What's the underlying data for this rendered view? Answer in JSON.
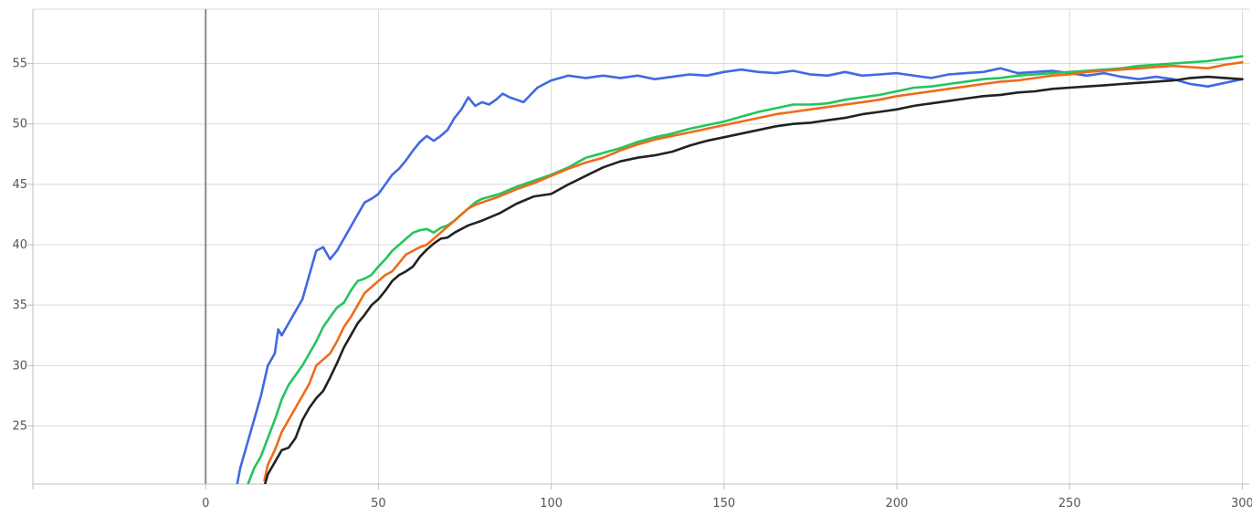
{
  "chart_data": {
    "type": "line",
    "title": "",
    "xlabel": "",
    "ylabel": "",
    "xlim": [
      -50,
      302
    ],
    "ylim": [
      20.2,
      59.5
    ],
    "x_ticks": [
      0,
      50,
      100,
      150,
      200,
      250,
      300
    ],
    "y_ticks": [
      25,
      30,
      35,
      40,
      45,
      50,
      55
    ],
    "grid": true,
    "legend": "none",
    "series": [
      {
        "color": "#4169e1",
        "points": [
          [
            9,
            20
          ],
          [
            10,
            21.5
          ],
          [
            12,
            23.5
          ],
          [
            14,
            25.5
          ],
          [
            16,
            27.5
          ],
          [
            18,
            30
          ],
          [
            20,
            31
          ],
          [
            21,
            33
          ],
          [
            22,
            32.5
          ],
          [
            24,
            33.5
          ],
          [
            26,
            34.5
          ],
          [
            28,
            35.5
          ],
          [
            30,
            37.5
          ],
          [
            32,
            39.5
          ],
          [
            34,
            39.8
          ],
          [
            36,
            38.8
          ],
          [
            38,
            39.5
          ],
          [
            40,
            40.5
          ],
          [
            42,
            41.5
          ],
          [
            44,
            42.5
          ],
          [
            46,
            43.5
          ],
          [
            48,
            43.8
          ],
          [
            50,
            44.2
          ],
          [
            52,
            45
          ],
          [
            54,
            45.8
          ],
          [
            56,
            46.3
          ],
          [
            58,
            47
          ],
          [
            60,
            47.8
          ],
          [
            62,
            48.5
          ],
          [
            64,
            49
          ],
          [
            66,
            48.6
          ],
          [
            68,
            49
          ],
          [
            70,
            49.5
          ],
          [
            72,
            50.5
          ],
          [
            74,
            51.2
          ],
          [
            76,
            52.2
          ],
          [
            78,
            51.5
          ],
          [
            80,
            51.8
          ],
          [
            82,
            51.6
          ],
          [
            84,
            52
          ],
          [
            86,
            52.5
          ],
          [
            88,
            52.2
          ],
          [
            90,
            52
          ],
          [
            92,
            51.8
          ],
          [
            94,
            52.4
          ],
          [
            96,
            53
          ],
          [
            98,
            53.3
          ],
          [
            100,
            53.6
          ],
          [
            105,
            54
          ],
          [
            110,
            53.8
          ],
          [
            115,
            54
          ],
          [
            120,
            53.8
          ],
          [
            125,
            54
          ],
          [
            130,
            53.7
          ],
          [
            135,
            53.9
          ],
          [
            140,
            54.1
          ],
          [
            145,
            54
          ],
          [
            150,
            54.3
          ],
          [
            155,
            54.5
          ],
          [
            160,
            54.3
          ],
          [
            165,
            54.2
          ],
          [
            170,
            54.4
          ],
          [
            175,
            54.1
          ],
          [
            180,
            54
          ],
          [
            185,
            54.3
          ],
          [
            190,
            54
          ],
          [
            195,
            54.1
          ],
          [
            200,
            54.2
          ],
          [
            205,
            54
          ],
          [
            210,
            53.8
          ],
          [
            215,
            54.1
          ],
          [
            220,
            54.2
          ],
          [
            225,
            54.3
          ],
          [
            230,
            54.6
          ],
          [
            235,
            54.2
          ],
          [
            240,
            54.3
          ],
          [
            245,
            54.4
          ],
          [
            250,
            54.2
          ],
          [
            255,
            54
          ],
          [
            260,
            54.2
          ],
          [
            265,
            53.9
          ],
          [
            270,
            53.7
          ],
          [
            275,
            53.9
          ],
          [
            280,
            53.7
          ],
          [
            285,
            53.3
          ],
          [
            290,
            53.1
          ],
          [
            295,
            53.4
          ],
          [
            300,
            53.7
          ]
        ]
      },
      {
        "color": "#22c55e",
        "points": [
          [
            12,
            20
          ],
          [
            14,
            21.5
          ],
          [
            16,
            22.5
          ],
          [
            18,
            24
          ],
          [
            20,
            25.5
          ],
          [
            22,
            27.2
          ],
          [
            24,
            28.4
          ],
          [
            26,
            29.2
          ],
          [
            28,
            30
          ],
          [
            30,
            31
          ],
          [
            32,
            32
          ],
          [
            34,
            33.2
          ],
          [
            36,
            34
          ],
          [
            38,
            34.8
          ],
          [
            40,
            35.2
          ],
          [
            42,
            36.2
          ],
          [
            44,
            37
          ],
          [
            46,
            37.2
          ],
          [
            48,
            37.5
          ],
          [
            50,
            38.2
          ],
          [
            52,
            38.8
          ],
          [
            54,
            39.5
          ],
          [
            56,
            40
          ],
          [
            58,
            40.5
          ],
          [
            60,
            41
          ],
          [
            62,
            41.2
          ],
          [
            64,
            41.3
          ],
          [
            66,
            41
          ],
          [
            68,
            41.4
          ],
          [
            70,
            41.6
          ],
          [
            72,
            42
          ],
          [
            74,
            42.5
          ],
          [
            76,
            43
          ],
          [
            78,
            43.5
          ],
          [
            80,
            43.8
          ],
          [
            85,
            44.2
          ],
          [
            90,
            44.8
          ],
          [
            95,
            45.3
          ],
          [
            100,
            45.8
          ],
          [
            105,
            46.4
          ],
          [
            110,
            47.2
          ],
          [
            115,
            47.6
          ],
          [
            120,
            48
          ],
          [
            125,
            48.5
          ],
          [
            130,
            48.9
          ],
          [
            135,
            49.2
          ],
          [
            140,
            49.6
          ],
          [
            145,
            49.9
          ],
          [
            150,
            50.2
          ],
          [
            155,
            50.6
          ],
          [
            160,
            51
          ],
          [
            165,
            51.3
          ],
          [
            170,
            51.6
          ],
          [
            175,
            51.6
          ],
          [
            180,
            51.7
          ],
          [
            185,
            52
          ],
          [
            190,
            52.2
          ],
          [
            195,
            52.4
          ],
          [
            200,
            52.7
          ],
          [
            205,
            53
          ],
          [
            210,
            53.1
          ],
          [
            215,
            53.3
          ],
          [
            220,
            53.5
          ],
          [
            225,
            53.7
          ],
          [
            230,
            53.8
          ],
          [
            235,
            54
          ],
          [
            240,
            54.1
          ],
          [
            245,
            54.2
          ],
          [
            250,
            54.3
          ],
          [
            255,
            54.4
          ],
          [
            260,
            54.5
          ],
          [
            265,
            54.6
          ],
          [
            270,
            54.8
          ],
          [
            275,
            54.9
          ],
          [
            280,
            55
          ],
          [
            285,
            55.1
          ],
          [
            290,
            55.2
          ],
          [
            295,
            55.4
          ],
          [
            300,
            55.6
          ]
        ]
      },
      {
        "color": "#f06a1a",
        "points": [
          [
            17,
            20.5
          ],
          [
            18,
            21.8
          ],
          [
            20,
            23
          ],
          [
            22,
            24.5
          ],
          [
            24,
            25.5
          ],
          [
            26,
            26.5
          ],
          [
            28,
            27.5
          ],
          [
            30,
            28.5
          ],
          [
            32,
            30
          ],
          [
            34,
            30.5
          ],
          [
            36,
            31
          ],
          [
            38,
            32
          ],
          [
            40,
            33.2
          ],
          [
            42,
            34
          ],
          [
            44,
            35
          ],
          [
            46,
            36
          ],
          [
            48,
            36.5
          ],
          [
            50,
            37
          ],
          [
            52,
            37.5
          ],
          [
            54,
            37.8
          ],
          [
            56,
            38.5
          ],
          [
            58,
            39.2
          ],
          [
            60,
            39.5
          ],
          [
            62,
            39.8
          ],
          [
            64,
            40
          ],
          [
            66,
            40.5
          ],
          [
            68,
            41
          ],
          [
            70,
            41.5
          ],
          [
            72,
            42
          ],
          [
            74,
            42.5
          ],
          [
            76,
            43
          ],
          [
            78,
            43.3
          ],
          [
            80,
            43.5
          ],
          [
            85,
            44
          ],
          [
            90,
            44.6
          ],
          [
            95,
            45.1
          ],
          [
            100,
            45.7
          ],
          [
            105,
            46.3
          ],
          [
            110,
            46.8
          ],
          [
            115,
            47.2
          ],
          [
            120,
            47.8
          ],
          [
            125,
            48.3
          ],
          [
            130,
            48.7
          ],
          [
            135,
            49
          ],
          [
            140,
            49.3
          ],
          [
            145,
            49.6
          ],
          [
            150,
            49.9
          ],
          [
            155,
            50.2
          ],
          [
            160,
            50.5
          ],
          [
            165,
            50.8
          ],
          [
            170,
            51
          ],
          [
            175,
            51.2
          ],
          [
            180,
            51.4
          ],
          [
            185,
            51.6
          ],
          [
            190,
            51.8
          ],
          [
            195,
            52
          ],
          [
            200,
            52.3
          ],
          [
            205,
            52.5
          ],
          [
            210,
            52.7
          ],
          [
            215,
            52.9
          ],
          [
            220,
            53.1
          ],
          [
            225,
            53.3
          ],
          [
            230,
            53.5
          ],
          [
            235,
            53.6
          ],
          [
            240,
            53.8
          ],
          [
            245,
            54
          ],
          [
            250,
            54.1
          ],
          [
            255,
            54.3
          ],
          [
            260,
            54.4
          ],
          [
            265,
            54.5
          ],
          [
            270,
            54.6
          ],
          [
            275,
            54.7
          ],
          [
            280,
            54.8
          ],
          [
            285,
            54.7
          ],
          [
            290,
            54.6
          ],
          [
            295,
            54.9
          ],
          [
            300,
            55.1
          ]
        ]
      },
      {
        "color": "#222222",
        "points": [
          [
            17,
            20
          ],
          [
            18,
            21
          ],
          [
            20,
            22
          ],
          [
            22,
            23
          ],
          [
            24,
            23.2
          ],
          [
            26,
            24
          ],
          [
            28,
            25.5
          ],
          [
            30,
            26.5
          ],
          [
            32,
            27.3
          ],
          [
            34,
            27.9
          ],
          [
            36,
            29
          ],
          [
            38,
            30.2
          ],
          [
            40,
            31.5
          ],
          [
            42,
            32.5
          ],
          [
            44,
            33.5
          ],
          [
            46,
            34.2
          ],
          [
            48,
            35
          ],
          [
            50,
            35.5
          ],
          [
            52,
            36.2
          ],
          [
            54,
            37
          ],
          [
            56,
            37.5
          ],
          [
            58,
            37.8
          ],
          [
            60,
            38.2
          ],
          [
            62,
            39
          ],
          [
            64,
            39.6
          ],
          [
            66,
            40.1
          ],
          [
            68,
            40.5
          ],
          [
            70,
            40.6
          ],
          [
            72,
            41
          ],
          [
            74,
            41.3
          ],
          [
            76,
            41.6
          ],
          [
            78,
            41.8
          ],
          [
            80,
            42
          ],
          [
            85,
            42.6
          ],
          [
            90,
            43.4
          ],
          [
            95,
            44
          ],
          [
            100,
            44.2
          ],
          [
            105,
            45
          ],
          [
            110,
            45.7
          ],
          [
            115,
            46.4
          ],
          [
            120,
            46.9
          ],
          [
            125,
            47.2
          ],
          [
            130,
            47.4
          ],
          [
            135,
            47.7
          ],
          [
            140,
            48.2
          ],
          [
            145,
            48.6
          ],
          [
            150,
            48.9
          ],
          [
            155,
            49.2
          ],
          [
            160,
            49.5
          ],
          [
            165,
            49.8
          ],
          [
            170,
            50
          ],
          [
            175,
            50.1
          ],
          [
            180,
            50.3
          ],
          [
            185,
            50.5
          ],
          [
            190,
            50.8
          ],
          [
            195,
            51
          ],
          [
            200,
            51.2
          ],
          [
            205,
            51.5
          ],
          [
            210,
            51.7
          ],
          [
            215,
            51.9
          ],
          [
            220,
            52.1
          ],
          [
            225,
            52.3
          ],
          [
            230,
            52.4
          ],
          [
            235,
            52.6
          ],
          [
            240,
            52.7
          ],
          [
            245,
            52.9
          ],
          [
            250,
            53
          ],
          [
            255,
            53.1
          ],
          [
            260,
            53.2
          ],
          [
            265,
            53.3
          ],
          [
            270,
            53.4
          ],
          [
            275,
            53.5
          ],
          [
            280,
            53.6
          ],
          [
            285,
            53.8
          ],
          [
            290,
            53.9
          ],
          [
            295,
            53.8
          ],
          [
            300,
            53.7
          ]
        ]
      }
    ]
  }
}
